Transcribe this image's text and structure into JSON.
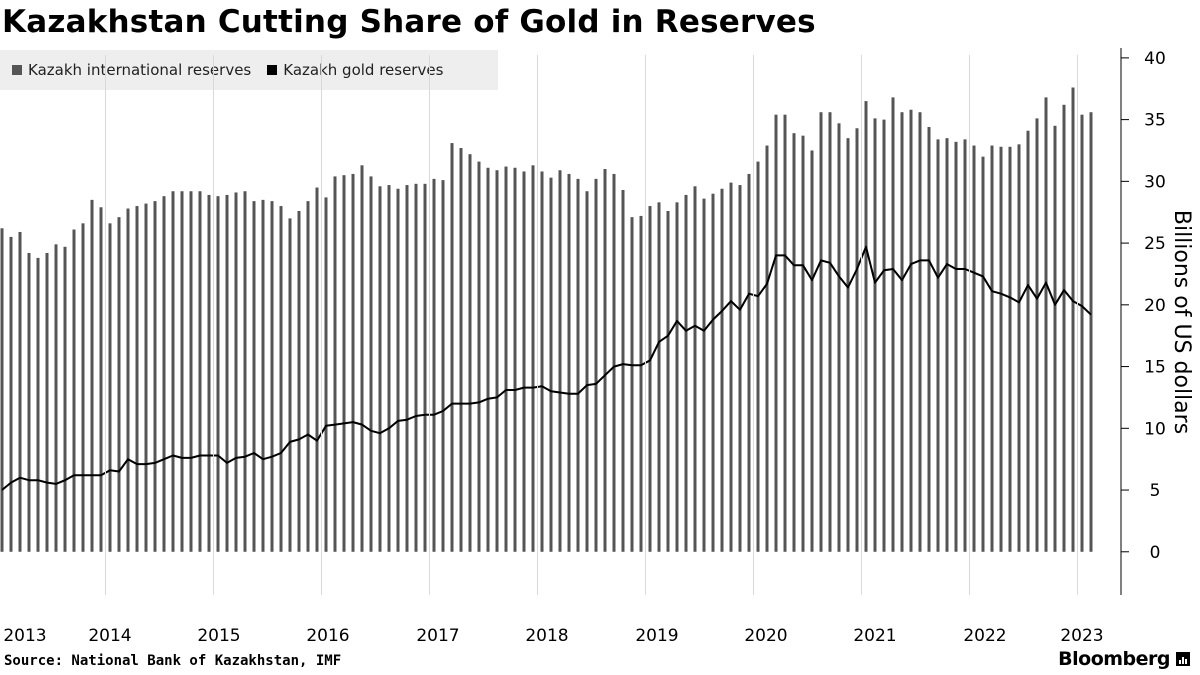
{
  "title": "Kazakhstan Cutting Share of Gold in Reserves",
  "legend": [
    {
      "label": "Kazakh international reserves",
      "color": "#555555"
    },
    {
      "label": "Kazakh gold reserves",
      "color": "#000000"
    }
  ],
  "footer": {
    "source": "Source:  National Bank of Kazakhstan, IMF",
    "brand": "Bloomberg"
  },
  "chart_data": {
    "type": "bar+line",
    "title": "Kazakhstan Cutting Share of Gold in Reserves",
    "ylabel": "Billions of US dollars",
    "ylim": [
      -3.5,
      40.8
    ],
    "yticks": [
      0,
      5,
      10,
      15,
      20,
      25,
      30,
      35,
      40
    ],
    "x_start": "2013-01",
    "x_end": "2023-03",
    "xtick_labels": [
      "2013",
      "2014",
      "2015",
      "2016",
      "2017",
      "2018",
      "2019",
      "2020",
      "2021",
      "2022",
      "2023"
    ],
    "series": [
      {
        "name": "Kazakh international reserves",
        "type": "bar",
        "color": "#555555",
        "values": [
          26.2,
          25.5,
          25.9,
          24.2,
          23.8,
          24.2,
          24.9,
          24.7,
          26.1,
          26.6,
          28.5,
          27.9,
          26.6,
          27.1,
          27.8,
          28.0,
          28.2,
          28.4,
          28.8,
          29.2,
          29.2,
          29.2,
          29.2,
          28.9,
          28.8,
          28.9,
          29.1,
          29.2,
          28.4,
          28.5,
          28.4,
          28.0,
          27.0,
          27.6,
          28.4,
          29.5,
          28.7,
          30.4,
          30.5,
          30.6,
          31.3,
          30.4,
          29.6,
          29.7,
          29.4,
          29.7,
          29.8,
          29.8,
          30.2,
          30.1,
          33.1,
          32.7,
          32.2,
          31.6,
          31.1,
          30.9,
          31.2,
          31.1,
          30.8,
          31.3,
          30.8,
          30.3,
          30.9,
          30.6,
          30.2,
          29.2,
          30.2,
          31.0,
          30.6,
          29.3,
          27.1,
          27.2,
          28.0,
          28.3,
          27.6,
          28.3,
          28.9,
          29.6,
          28.6,
          29.0,
          29.4,
          29.9,
          29.7,
          30.6,
          31.6,
          32.9,
          35.4,
          35.4,
          33.9,
          33.7,
          32.5,
          35.6,
          35.6,
          34.7,
          33.5,
          34.3,
          36.5,
          35.1,
          35.0,
          36.8,
          35.6,
          35.8,
          35.6,
          34.4,
          33.4,
          33.5,
          33.2,
          33.4,
          32.9,
          32.0,
          32.9,
          32.8,
          32.8,
          33.0,
          34.1,
          35.1,
          36.8,
          34.5,
          36.2,
          37.6,
          35.4,
          35.6
        ]
      },
      {
        "name": "Kazakh gold reserves",
        "type": "line",
        "color": "#000000",
        "values": [
          5.0,
          5.6,
          6.0,
          5.8,
          5.8,
          5.6,
          5.5,
          5.8,
          6.2,
          6.2,
          6.2,
          6.2,
          6.6,
          6.5,
          7.5,
          7.1,
          7.1,
          7.2,
          7.5,
          7.8,
          7.6,
          7.6,
          7.8,
          7.8,
          7.8,
          7.2,
          7.6,
          7.7,
          8.0,
          7.5,
          7.7,
          8.0,
          8.9,
          9.1,
          9.5,
          9.0,
          10.2,
          10.3,
          10.4,
          10.5,
          10.3,
          9.8,
          9.6,
          10.0,
          10.6,
          10.7,
          11.0,
          11.1,
          11.1,
          11.4,
          12.0,
          12.0,
          12.0,
          12.1,
          12.4,
          12.5,
          13.1,
          13.1,
          13.3,
          13.3,
          13.4,
          13.0,
          12.9,
          12.8,
          12.8,
          13.5,
          13.6,
          14.3,
          15.0,
          15.2,
          15.1,
          15.1,
          15.5,
          17.0,
          17.5,
          18.7,
          17.9,
          18.3,
          17.9,
          18.8,
          19.5,
          20.3,
          19.6,
          20.9,
          20.7,
          21.7,
          24.0,
          24.0,
          23.2,
          23.2,
          22.0,
          23.6,
          23.4,
          22.3,
          21.4,
          22.9,
          24.7,
          21.8,
          22.8,
          22.9,
          22.0,
          23.3,
          23.6,
          23.6,
          22.2,
          23.3,
          22.9,
          22.9,
          22.6,
          22.3,
          21.1,
          20.9,
          20.6,
          20.2,
          21.6,
          20.5,
          21.8,
          20.0,
          21.2,
          20.3,
          19.9,
          19.2
        ]
      }
    ]
  }
}
